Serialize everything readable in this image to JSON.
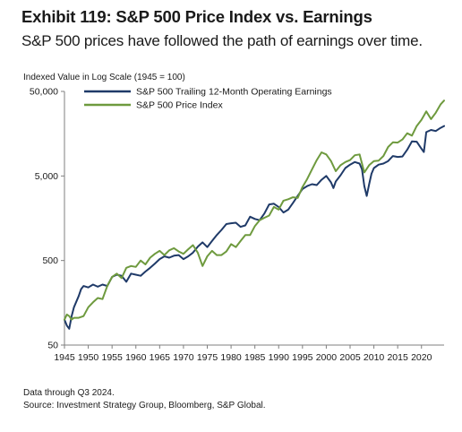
{
  "header": {
    "title": "Exhibit 119: S&P 500 Price Index vs. Earnings",
    "subtitle": "S&P 500 prices have followed the path of earnings over time."
  },
  "footnotes": {
    "note": "Data through Q3 2024.",
    "source": "Source: Investment Strategy Group, Bloomberg, S&P Global."
  },
  "chart_data": {
    "type": "line",
    "ylabel": "Indexed Value in Log Scale (1945 = 100)",
    "xlabel": "",
    "y_scale": "log",
    "ylim": [
      50,
      50000
    ],
    "xlim": [
      1945,
      2024.75
    ],
    "y_ticks": [
      50,
      500,
      5000,
      50000
    ],
    "y_tick_labels": [
      "50",
      "500",
      "5,000",
      "50,000"
    ],
    "x_ticks": [
      1945,
      1950,
      1955,
      1960,
      1965,
      1970,
      1975,
      1980,
      1985,
      1990,
      1995,
      2000,
      2005,
      2010,
      2015,
      2020
    ],
    "x_tick_labels": [
      "1945",
      "1950",
      "1955",
      "1960",
      "1965",
      "1970",
      "1975",
      "1980",
      "1985",
      "1990",
      "1995",
      "2000",
      "2005",
      "2010",
      "2015",
      "2020"
    ],
    "grid": false,
    "legend_position": "top-left",
    "series": [
      {
        "name": "S&P 500 Trailing 12-Month Operating Earnings",
        "color": "#1f3a68",
        "x": [
          1945,
          1945.5,
          1946,
          1946.5,
          1947,
          1948,
          1948.5,
          1949,
          1950,
          1951,
          1952,
          1953,
          1954,
          1955,
          1956,
          1957,
          1958,
          1959,
          1960,
          1961,
          1962,
          1963,
          1964,
          1965,
          1966,
          1967,
          1968,
          1969,
          1970,
          1971,
          1972,
          1973,
          1974,
          1975,
          1976,
          1977,
          1978,
          1979,
          1980,
          1981,
          1982,
          1983,
          1984,
          1985,
          1986,
          1987,
          1988,
          1989,
          1990,
          1991,
          1992,
          1993,
          1994,
          1995,
          1996,
          1997,
          1998,
          1999,
          2000,
          2001,
          2001.5,
          2002,
          2003,
          2004,
          2005,
          2006,
          2007,
          2007.5,
          2008,
          2008.5,
          2009,
          2009.5,
          2010,
          2011,
          2012,
          2013,
          2014,
          2015,
          2016,
          2017,
          2018,
          2019,
          2020,
          2020.5,
          2021,
          2022,
          2023,
          2024,
          2024.75
        ],
        "values": [
          100,
          85,
          78,
          110,
          140,
          190,
          230,
          250,
          240,
          260,
          245,
          260,
          250,
          320,
          340,
          330,
          280,
          350,
          340,
          330,
          370,
          410,
          460,
          520,
          560,
          540,
          570,
          580,
          520,
          560,
          620,
          730,
          820,
          720,
          850,
          1000,
          1150,
          1350,
          1380,
          1400,
          1250,
          1300,
          1650,
          1550,
          1500,
          1800,
          2300,
          2350,
          2150,
          1850,
          2000,
          2400,
          2900,
          3500,
          3800,
          4000,
          3900,
          4500,
          5000,
          4200,
          3600,
          4300,
          5100,
          6200,
          6800,
          7300,
          7000,
          6000,
          3800,
          2900,
          4000,
          5300,
          6200,
          6800,
          7000,
          7500,
          8600,
          8400,
          8500,
          10200,
          12800,
          12700,
          10500,
          9600,
          16500,
          17500,
          17000,
          18500,
          19500
        ]
      },
      {
        "name": "S&P 500 Price Index",
        "color": "#6e9a3e",
        "x": [
          1945,
          1945.5,
          1946,
          1946.5,
          1947,
          1948,
          1949,
          1950,
          1951,
          1952,
          1953,
          1954,
          1955,
          1956,
          1957,
          1958,
          1959,
          1960,
          1961,
          1962,
          1963,
          1964,
          1965,
          1966,
          1967,
          1968,
          1969,
          1970,
          1971,
          1972,
          1973,
          1974,
          1975,
          1976,
          1977,
          1978,
          1979,
          1980,
          1981,
          1982,
          1983,
          1984,
          1985,
          1986,
          1987,
          1988,
          1989,
          1990,
          1991,
          1992,
          1993,
          1994,
          1995,
          1996,
          1997,
          1998,
          1999,
          2000,
          2001,
          2002,
          2003,
          2004,
          2005,
          2006,
          2007,
          2008,
          2009,
          2010,
          2011,
          2012,
          2013,
          2014,
          2015,
          2016,
          2017,
          2018,
          2019,
          2020,
          2021,
          2022,
          2023,
          2024,
          2024.75
        ],
        "values": [
          100,
          115,
          110,
          100,
          105,
          105,
          110,
          140,
          160,
          180,
          175,
          250,
          320,
          350,
          310,
          410,
          430,
          420,
          500,
          450,
          540,
          600,
          650,
          580,
          660,
          700,
          640,
          600,
          680,
          760,
          620,
          430,
          560,
          650,
          580,
          580,
          640,
          780,
          720,
          850,
          1000,
          1000,
          1280,
          1500,
          1600,
          1700,
          2150,
          2000,
          2550,
          2650,
          2800,
          2750,
          3700,
          4600,
          6000,
          7700,
          9500,
          9000,
          7500,
          5700,
          6700,
          7300,
          7700,
          8800,
          9000,
          5500,
          6700,
          7500,
          7600,
          8600,
          11000,
          12500,
          12400,
          13500,
          16000,
          15000,
          19500,
          23000,
          29000,
          23500,
          28000,
          35000,
          39000
        ]
      }
    ]
  }
}
